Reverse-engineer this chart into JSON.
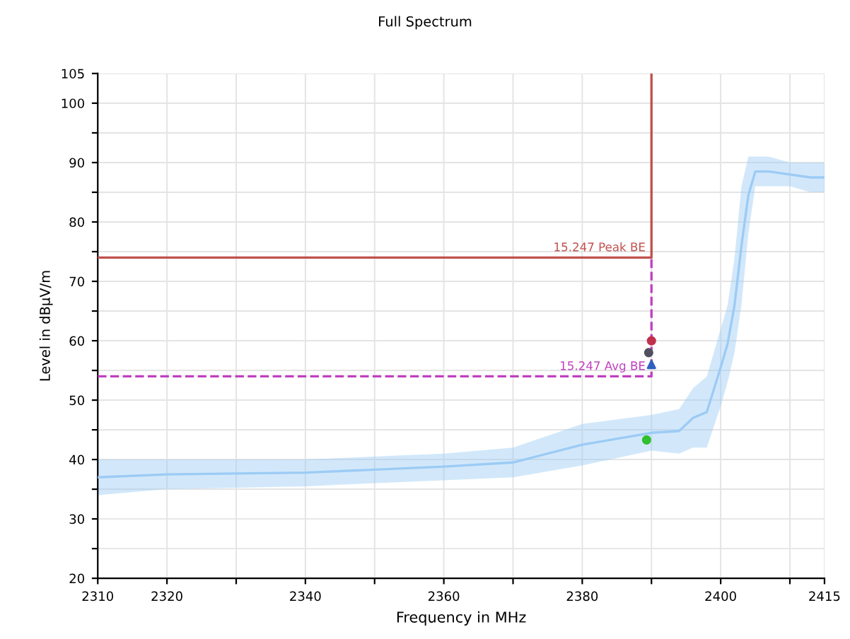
{
  "chart_data": {
    "type": "line",
    "title": "Full Spectrum",
    "xlabel": "Frequency in MHz",
    "ylabel": "Level in dBµV/m",
    "xlim": [
      2310,
      2415
    ],
    "ylim": [
      20,
      105
    ],
    "xticks": [
      2310,
      2320,
      {
        "value": 2330,
        "label": null
      },
      2340,
      {
        "value": 2350,
        "label": null
      },
      2360,
      {
        "value": 2370,
        "label": null
      },
      2380,
      {
        "value": 2390,
        "label": null
      },
      2400,
      {
        "value": 2410,
        "label": null
      },
      2415
    ],
    "yticks": [
      20,
      {
        "value": 25,
        "label": null
      },
      30,
      {
        "value": 35,
        "label": null
      },
      40,
      {
        "value": 45,
        "label": null
      },
      50,
      {
        "value": 55,
        "label": null
      },
      60,
      {
        "value": 65,
        "label": null
      },
      70,
      {
        "value": 75,
        "label": null
      },
      80,
      {
        "value": 85,
        "label": null
      },
      90,
      {
        "value": 95,
        "label": null
      },
      100,
      105
    ],
    "grid": true,
    "legend": false,
    "series": [
      {
        "color": "#9ccbf5",
        "x": [
          2310,
          2320,
          2340,
          2360,
          2370,
          2380,
          2390,
          2394,
          2396,
          2398,
          2400,
          2401,
          2402,
          2403,
          2404,
          2405,
          2407,
          2410,
          2413,
          2415
        ],
        "lower": [
          34,
          35,
          35.5,
          36.5,
          37,
          39,
          41.5,
          41,
          42,
          42,
          49,
          53,
          58,
          66,
          78,
          86,
          86,
          86,
          85,
          85
        ],
        "upper": [
          40,
          40,
          40,
          41,
          42,
          46,
          47.5,
          48.5,
          52,
          54,
          62,
          66,
          74,
          86,
          91,
          91,
          91,
          90,
          90,
          90
        ],
        "values": [
          37,
          37.5,
          37.8,
          38.8,
          39.5,
          42.5,
          44.5,
          44.8,
          47,
          48,
          55.5,
          59.5,
          66,
          76,
          84.5,
          88.5,
          88.5,
          88,
          87.5,
          87.5
        ]
      },
      {
        "type": "line",
        "name": "15.247 Peak BE",
        "color": "#c0504d",
        "line_style": "solid",
        "x": [
          2310,
          2390,
          2390
        ],
        "values": [
          74,
          74,
          105
        ]
      },
      {
        "type": "line",
        "name": "15.247 Avg BE",
        "color": "#c040c0",
        "line_style": "dashed",
        "x": [
          2310,
          2390,
          2390
        ],
        "values": [
          54,
          54,
          74
        ]
      },
      {
        "type": "scatter",
        "color": "#c0304d",
        "marker": "circle",
        "x": [
          2390
        ],
        "values": [
          60
        ]
      },
      {
        "type": "scatter",
        "color": "#505060",
        "marker": "circle",
        "x": [
          2389.6
        ],
        "values": [
          58
        ]
      },
      {
        "type": "scatter",
        "color": "#3060c0",
        "marker": "triangle",
        "x": [
          2390
        ],
        "values": [
          56
        ]
      },
      {
        "type": "scatter",
        "color": "#30c030",
        "marker": "circle",
        "x": [
          2389.3
        ],
        "values": [
          43.3
        ]
      }
    ]
  }
}
